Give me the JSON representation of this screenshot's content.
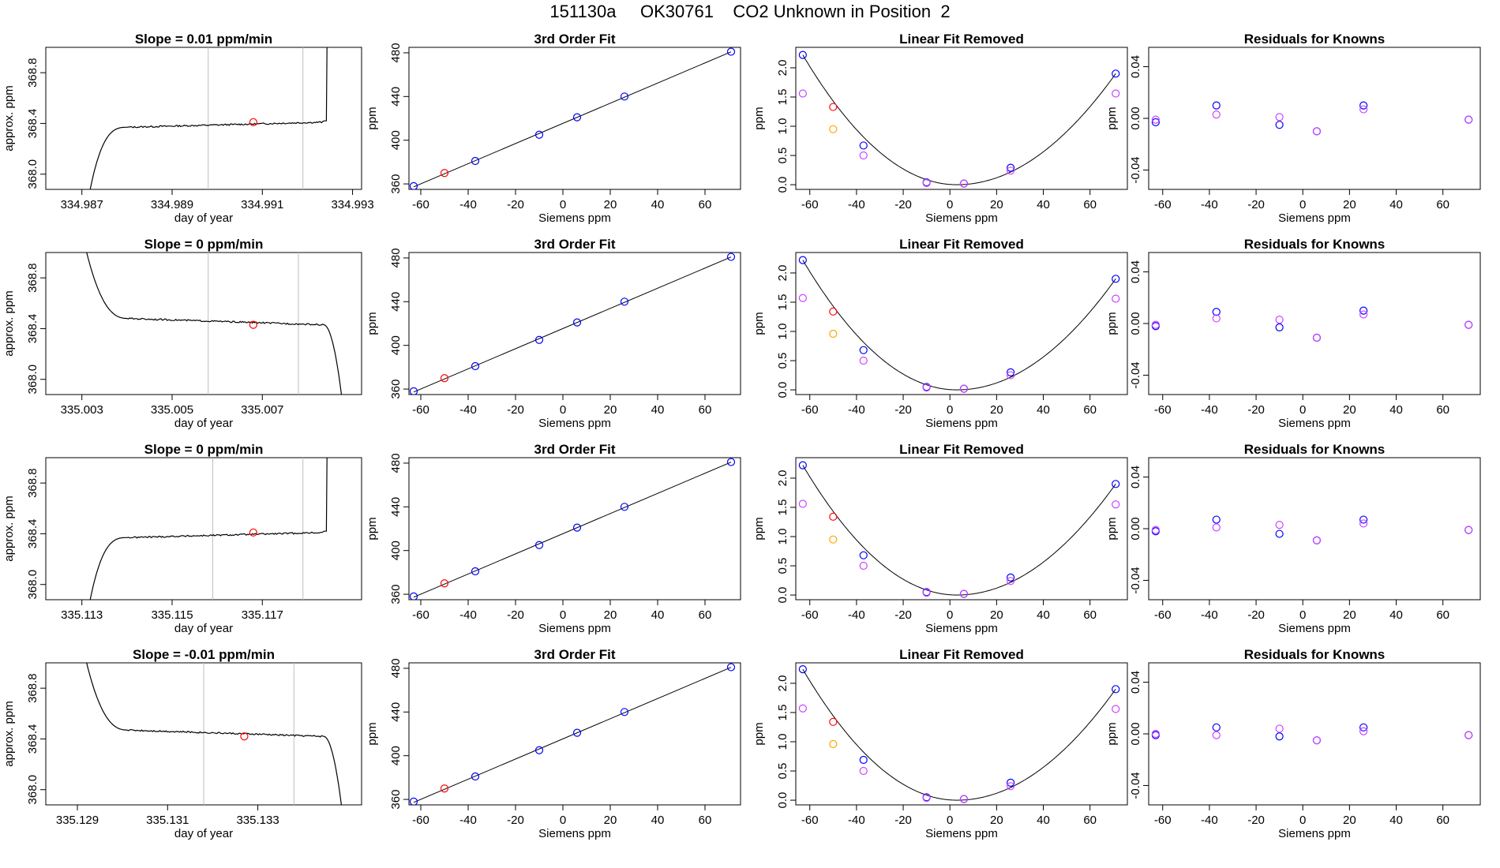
{
  "title": "151130a     OK30761    CO2 Unknown in Position  2",
  "colors": {
    "trace": "#000000",
    "grid_line": "#bebebe",
    "blue": "#0000ff",
    "red": "#ff0000",
    "orange": "#ffa500",
    "violet": "#cc44ff"
  },
  "chart_data": [
    {
      "type": "line",
      "title": "Slope =  0.01  ppm/min",
      "xlabel": "day of year",
      "ylabel": "approx. ppm",
      "xlim": [
        334.9862,
        334.9932
      ],
      "ylim": [
        367.88,
        369.0
      ],
      "xticks": [
        "334.987",
        "334.989",
        "334.991",
        "334.993"
      ],
      "yticks": [
        "368.0",
        "368.4",
        "368.8"
      ],
      "trend": "up",
      "plateau": 368.41,
      "window": [
        334.9898,
        334.9919
      ],
      "mean_point": [
        334.9908,
        368.41
      ]
    },
    {
      "type": "scatter",
      "title": "3rd Order Fit",
      "xlabel": "Siemens ppm",
      "ylabel": "ppm",
      "xlim": [
        -65,
        75
      ],
      "ylim": [
        355,
        485
      ],
      "xticks": [
        "-60",
        "-40",
        "-20",
        "0",
        "20",
        "40",
        "60"
      ],
      "yticks": [
        "360",
        "400",
        "440",
        "480"
      ],
      "series": [
        {
          "color": "blue",
          "x": [
            -63,
            -37,
            -10,
            6,
            26,
            71
          ],
          "y": [
            358,
            381,
            405,
            421,
            440,
            481
          ]
        },
        {
          "color": "red",
          "x": [
            -50
          ],
          "y": [
            370
          ]
        }
      ],
      "fit": "linear"
    },
    {
      "type": "scatter",
      "title": "Linear Fit Removed",
      "xlabel": "Siemens ppm",
      "ylabel": "ppm",
      "xlim": [
        -66,
        76
      ],
      "ylim": [
        -0.08,
        2.35
      ],
      "xticks": [
        "-60",
        "-40",
        "-20",
        "0",
        "20",
        "40",
        "60"
      ],
      "yticks": [
        "0.0",
        "0.5",
        "1.0",
        "1.5",
        "2.0"
      ],
      "series": [
        {
          "color": "blue",
          "x": [
            -63,
            -37,
            -10,
            6,
            26,
            71
          ],
          "y": [
            2.22,
            0.67,
            0.04,
            0.02,
            0.29,
            1.9
          ]
        },
        {
          "color": "violet",
          "x": [
            -63,
            -37,
            -10,
            6,
            26,
            71
          ],
          "y": [
            1.56,
            0.5,
            0.03,
            0.02,
            0.24,
            1.56
          ]
        },
        {
          "color": "red",
          "x": [
            -50
          ],
          "y": [
            1.33
          ]
        },
        {
          "color": "orange",
          "x": [
            -50
          ],
          "y": [
            0.95
          ]
        }
      ],
      "fit": "quadratic"
    },
    {
      "type": "scatter",
      "title": "Residuals for Knowns",
      "xlabel": "Siemens ppm",
      "ylabel": "ppm",
      "xlim": [
        -66,
        76
      ],
      "ylim": [
        -0.055,
        0.055
      ],
      "xticks": [
        "-60",
        "-40",
        "-20",
        "0",
        "20",
        "40",
        "60"
      ],
      "yticks": [
        "-0.04",
        "0.00",
        "0.04"
      ],
      "series": [
        {
          "color": "blue",
          "x": [
            -63,
            -37,
            -10,
            6,
            26,
            71
          ],
          "y": [
            -0.003,
            0.01,
            -0.005,
            -0.01,
            0.01,
            -0.001
          ]
        },
        {
          "color": "violet",
          "x": [
            -63,
            -37,
            -10,
            6,
            26,
            71
          ],
          "y": [
            -0.001,
            0.003,
            0.001,
            -0.01,
            0.007,
            -0.001
          ]
        }
      ]
    },
    {
      "type": "line",
      "title": "Slope =  0  ppm/min",
      "xlabel": "day of year",
      "ylabel": "approx. ppm",
      "xlim": [
        335.0022,
        335.0092
      ],
      "ylim": [
        367.88,
        369.0
      ],
      "xticks": [
        "335.003",
        "335.005",
        "335.007"
      ],
      "yticks": [
        "368.0",
        "368.4",
        "368.8"
      ],
      "trend": "down",
      "plateau": 368.43,
      "window": [
        335.0058,
        335.0078
      ],
      "mean_point": [
        335.0068,
        368.43
      ]
    },
    {
      "type": "scatter",
      "title": "3rd Order Fit",
      "xlabel": "Siemens ppm",
      "ylabel": "ppm",
      "xlim": [
        -65,
        75
      ],
      "ylim": [
        355,
        485
      ],
      "xticks": [
        "-60",
        "-40",
        "-20",
        "0",
        "20",
        "40",
        "60"
      ],
      "yticks": [
        "360",
        "400",
        "440",
        "480"
      ],
      "series": [
        {
          "color": "blue",
          "x": [
            -63,
            -37,
            -10,
            6,
            26,
            71
          ],
          "y": [
            358,
            381,
            405,
            421,
            440,
            481
          ]
        },
        {
          "color": "red",
          "x": [
            -50
          ],
          "y": [
            370
          ]
        }
      ],
      "fit": "linear"
    },
    {
      "type": "scatter",
      "title": "Linear Fit Removed",
      "xlabel": "Siemens ppm",
      "ylabel": "ppm",
      "xlim": [
        -66,
        76
      ],
      "ylim": [
        -0.08,
        2.35
      ],
      "xticks": [
        "-60",
        "-40",
        "-20",
        "0",
        "20",
        "40",
        "60"
      ],
      "yticks": [
        "0.0",
        "0.5",
        "1.0",
        "1.5",
        "2.0"
      ],
      "series": [
        {
          "color": "blue",
          "x": [
            -63,
            -37,
            -10,
            6,
            26,
            71
          ],
          "y": [
            2.22,
            0.68,
            0.05,
            0.02,
            0.3,
            1.9
          ]
        },
        {
          "color": "violet",
          "x": [
            -63,
            -37,
            -10,
            6,
            26,
            71
          ],
          "y": [
            1.57,
            0.5,
            0.04,
            0.02,
            0.25,
            1.56
          ]
        },
        {
          "color": "red",
          "x": [
            -50
          ],
          "y": [
            1.34
          ]
        },
        {
          "color": "orange",
          "x": [
            -50
          ],
          "y": [
            0.96
          ]
        }
      ],
      "fit": "quadratic"
    },
    {
      "type": "scatter",
      "title": "Residuals for Knowns",
      "xlabel": "Siemens ppm",
      "ylabel": "ppm",
      "xlim": [
        -66,
        76
      ],
      "ylim": [
        -0.055,
        0.055
      ],
      "xticks": [
        "-60",
        "-40",
        "-20",
        "0",
        "20",
        "40",
        "60"
      ],
      "yticks": [
        "-0.04",
        "0.00",
        "0.04"
      ],
      "series": [
        {
          "color": "blue",
          "x": [
            -63,
            -37,
            -10,
            6,
            26,
            71
          ],
          "y": [
            -0.002,
            0.009,
            -0.003,
            -0.011,
            0.01,
            -0.001
          ]
        },
        {
          "color": "violet",
          "x": [
            -63,
            -37,
            -10,
            6,
            26,
            71
          ],
          "y": [
            -0.001,
            0.004,
            0.003,
            -0.011,
            0.007,
            -0.001
          ]
        }
      ]
    },
    {
      "type": "line",
      "title": "Slope =  0  ppm/min",
      "xlabel": "day of year",
      "ylabel": "approx. ppm",
      "xlim": [
        335.1122,
        335.1192
      ],
      "ylim": [
        367.88,
        369.0
      ],
      "xticks": [
        "335.113",
        "335.115",
        "335.117"
      ],
      "yticks": [
        "368.0",
        "368.4",
        "368.8"
      ],
      "trend": "up",
      "plateau": 368.41,
      "window": [
        335.1159,
        335.1179
      ],
      "mean_point": [
        335.1168,
        368.41
      ]
    },
    {
      "type": "scatter",
      "title": "3rd Order Fit",
      "xlabel": "Siemens ppm",
      "ylabel": "ppm",
      "xlim": [
        -65,
        75
      ],
      "ylim": [
        355,
        485
      ],
      "xticks": [
        "-60",
        "-40",
        "-20",
        "0",
        "20",
        "40",
        "60"
      ],
      "yticks": [
        "360",
        "400",
        "440",
        "480"
      ],
      "series": [
        {
          "color": "blue",
          "x": [
            -63,
            -37,
            -10,
            6,
            26,
            71
          ],
          "y": [
            358,
            381,
            405,
            421,
            440,
            481
          ]
        },
        {
          "color": "red",
          "x": [
            -50
          ],
          "y": [
            370
          ]
        }
      ],
      "fit": "linear"
    },
    {
      "type": "scatter",
      "title": "Linear Fit Removed",
      "xlabel": "Siemens ppm",
      "ylabel": "ppm",
      "xlim": [
        -66,
        76
      ],
      "ylim": [
        -0.08,
        2.35
      ],
      "xticks": [
        "-60",
        "-40",
        "-20",
        "0",
        "20",
        "40",
        "60"
      ],
      "yticks": [
        "0.0",
        "0.5",
        "1.0",
        "1.5",
        "2.0"
      ],
      "series": [
        {
          "color": "blue",
          "x": [
            -63,
            -37,
            -10,
            6,
            26,
            71
          ],
          "y": [
            2.22,
            0.68,
            0.05,
            0.02,
            0.3,
            1.9
          ]
        },
        {
          "color": "violet",
          "x": [
            -63,
            -37,
            -10,
            6,
            26,
            71
          ],
          "y": [
            1.56,
            0.5,
            0.04,
            0.02,
            0.24,
            1.55
          ]
        },
        {
          "color": "red",
          "x": [
            -50
          ],
          "y": [
            1.34
          ]
        },
        {
          "color": "orange",
          "x": [
            -50
          ],
          "y": [
            0.95
          ]
        }
      ],
      "fit": "quadratic"
    },
    {
      "type": "scatter",
      "title": "Residuals for Knowns",
      "xlabel": "Siemens ppm",
      "ylabel": "ppm",
      "xlim": [
        -66,
        76
      ],
      "ylim": [
        -0.055,
        0.055
      ],
      "xticks": [
        "-60",
        "-40",
        "-20",
        "0",
        "20",
        "40",
        "60"
      ],
      "yticks": [
        "-0.04",
        "0.00",
        "0.04"
      ],
      "series": [
        {
          "color": "blue",
          "x": [
            -63,
            -37,
            -10,
            6,
            26,
            71
          ],
          "y": [
            -0.002,
            0.007,
            -0.004,
            -0.009,
            0.007,
            -0.001
          ]
        },
        {
          "color": "violet",
          "x": [
            -63,
            -37,
            -10,
            6,
            26,
            71
          ],
          "y": [
            -0.001,
            0.001,
            0.003,
            -0.009,
            0.004,
            -0.001
          ]
        }
      ]
    },
    {
      "type": "line",
      "title": "Slope =  -0.01  ppm/min",
      "xlabel": "day of year",
      "ylabel": "approx. ppm",
      "xlim": [
        335.1283,
        335.1353
      ],
      "ylim": [
        367.88,
        369.0
      ],
      "xticks": [
        "335.129",
        "335.131",
        "335.133"
      ],
      "yticks": [
        "368.0",
        "368.4",
        "368.8"
      ],
      "trend": "down",
      "plateau": 368.42,
      "window": [
        335.1318,
        335.1338
      ],
      "mean_point": [
        335.1327,
        368.42
      ]
    },
    {
      "type": "scatter",
      "title": "3rd Order Fit",
      "xlabel": "Siemens ppm",
      "ylabel": "ppm",
      "xlim": [
        -65,
        75
      ],
      "ylim": [
        355,
        485
      ],
      "xticks": [
        "-60",
        "-40",
        "-20",
        "0",
        "20",
        "40",
        "60"
      ],
      "yticks": [
        "360",
        "400",
        "440",
        "480"
      ],
      "series": [
        {
          "color": "blue",
          "x": [
            -63,
            -37,
            -10,
            6,
            26,
            71
          ],
          "y": [
            358,
            381,
            405,
            421,
            440,
            481
          ]
        },
        {
          "color": "red",
          "x": [
            -50
          ],
          "y": [
            370
          ]
        }
      ],
      "fit": "linear"
    },
    {
      "type": "scatter",
      "title": "Linear Fit Removed",
      "xlabel": "Siemens ppm",
      "ylabel": "ppm",
      "xlim": [
        -66,
        76
      ],
      "ylim": [
        -0.08,
        2.35
      ],
      "xticks": [
        "-60",
        "-40",
        "-20",
        "0",
        "20",
        "40",
        "60"
      ],
      "yticks": [
        "0.0",
        "0.5",
        "1.0",
        "1.5",
        "2.0"
      ],
      "series": [
        {
          "color": "blue",
          "x": [
            -63,
            -37,
            -10,
            6,
            26,
            71
          ],
          "y": [
            2.24,
            0.69,
            0.05,
            0.02,
            0.3,
            1.9
          ]
        },
        {
          "color": "violet",
          "x": [
            -63,
            -37,
            -10,
            6,
            26,
            71
          ],
          "y": [
            1.57,
            0.5,
            0.04,
            0.02,
            0.24,
            1.56
          ]
        },
        {
          "color": "red",
          "x": [
            -50
          ],
          "y": [
            1.34
          ]
        },
        {
          "color": "orange",
          "x": [
            -50
          ],
          "y": [
            0.96
          ]
        }
      ],
      "fit": "quadratic"
    },
    {
      "type": "scatter",
      "title": "Residuals for Knowns",
      "xlabel": "Siemens ppm",
      "ylabel": "ppm",
      "xlim": [
        -66,
        76
      ],
      "ylim": [
        -0.055,
        0.055
      ],
      "xticks": [
        "-60",
        "-40",
        "-20",
        "0",
        "20",
        "40",
        "60"
      ],
      "yticks": [
        "-0.04",
        "0.00",
        "0.04"
      ],
      "series": [
        {
          "color": "blue",
          "x": [
            -63,
            -37,
            -10,
            6,
            26,
            71
          ],
          "y": [
            -0.001,
            0.005,
            -0.002,
            -0.005,
            0.005,
            -0.001
          ]
        },
        {
          "color": "violet",
          "x": [
            -63,
            -37,
            -10,
            6,
            26,
            71
          ],
          "y": [
            0.0,
            -0.001,
            0.004,
            -0.005,
            0.002,
            -0.001
          ]
        }
      ]
    }
  ]
}
